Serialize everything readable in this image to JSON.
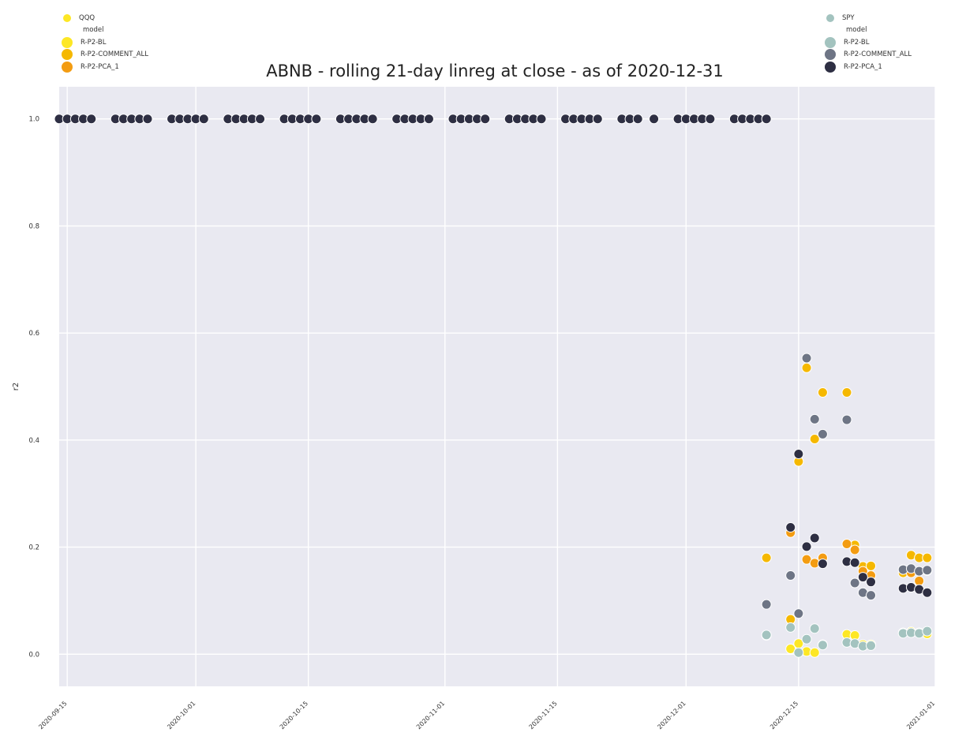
{
  "chart_data": {
    "type": "scatter",
    "title": "ABNB - rolling 21-day linreg at close - as of 2020-12-31",
    "xlabel": "",
    "ylabel": "r2",
    "xlim": [
      "2020-09-14",
      "2021-01-01"
    ],
    "ylim": [
      -0.06,
      1.06
    ],
    "x_ticks": [
      "2020-09-15",
      "2020-10-01",
      "2020-10-15",
      "2020-11-01",
      "2020-11-15",
      "2020-12-01",
      "2020-12-15",
      "2021-01-01"
    ],
    "y_ticks": [
      "0.0",
      "0.2",
      "0.4",
      "0.6",
      "0.8",
      "1.0"
    ],
    "grid": true,
    "legend_left": {
      "hue_title": "QQQ",
      "style_title": "model",
      "entries": [
        "R-P2-BL",
        "R-P2-COMMENT_ALL",
        "R-P2-PCA_1"
      ]
    },
    "legend_right": {
      "hue_title": "SPY",
      "style_title": "model",
      "entries": [
        "R-P2-BL",
        "R-P2-COMMENT_ALL",
        "R-P2-PCA_1"
      ]
    },
    "series": [
      {
        "index": "QQQ",
        "model": "R-P2-BL",
        "color": "#fde725",
        "points": [
          [
            "2020-12-11",
            0.035
          ],
          [
            "2020-12-14",
            0.01
          ],
          [
            "2020-12-15",
            0.02
          ],
          [
            "2020-12-16",
            0.005
          ],
          [
            "2020-12-17",
            0.003
          ],
          [
            "2020-12-18",
            0.018
          ],
          [
            "2020-12-21",
            0.037
          ],
          [
            "2020-12-22",
            0.035
          ],
          [
            "2020-12-23",
            0.018
          ],
          [
            "2020-12-24",
            0.018
          ],
          [
            "2020-12-28",
            0.04
          ],
          [
            "2020-12-29",
            0.042
          ],
          [
            "2020-12-30",
            0.04
          ],
          [
            "2020-12-31",
            0.038
          ]
        ]
      },
      {
        "index": "QQQ",
        "model": "R-P2-COMMENT_ALL",
        "color": "#f5b800",
        "points": [
          [
            "2020-12-11",
            0.18
          ],
          [
            "2020-12-14",
            0.065
          ],
          [
            "2020-12-15",
            0.36
          ],
          [
            "2020-12-16",
            0.535
          ],
          [
            "2020-12-17",
            0.402
          ],
          [
            "2020-12-18",
            0.489
          ],
          [
            "2020-12-21",
            0.489
          ],
          [
            "2020-12-22",
            0.204
          ],
          [
            "2020-12-23",
            0.164
          ],
          [
            "2020-12-24",
            0.165
          ],
          [
            "2020-12-28",
            0.152
          ],
          [
            "2020-12-29",
            0.185
          ],
          [
            "2020-12-30",
            0.18
          ],
          [
            "2020-12-31",
            0.18
          ]
        ]
      },
      {
        "index": "QQQ",
        "model": "R-P2-PCA_1",
        "color": "#f39c12",
        "points": [
          [
            "2020-12-14",
            0.227
          ],
          [
            "2020-12-16",
            0.177
          ],
          [
            "2020-12-17",
            0.17
          ],
          [
            "2020-12-18",
            0.18
          ],
          [
            "2020-12-21",
            0.206
          ],
          [
            "2020-12-22",
            0.195
          ],
          [
            "2020-12-23",
            0.155
          ],
          [
            "2020-12-24",
            0.147
          ],
          [
            "2020-12-28",
            0.158
          ],
          [
            "2020-12-29",
            0.152
          ],
          [
            "2020-12-30",
            0.137
          ],
          [
            "2020-12-31",
            0.156
          ]
        ]
      },
      {
        "index": "SPY",
        "model": "R-P2-BL",
        "color": "#a3c3bf",
        "points": [
          [
            "2020-12-11",
            0.036
          ],
          [
            "2020-12-14",
            0.05
          ],
          [
            "2020-12-15",
            0.003
          ],
          [
            "2020-12-16",
            0.028
          ],
          [
            "2020-12-17",
            0.048
          ],
          [
            "2020-12-18",
            0.017
          ],
          [
            "2020-12-21",
            0.022
          ],
          [
            "2020-12-22",
            0.02
          ],
          [
            "2020-12-23",
            0.015
          ],
          [
            "2020-12-24",
            0.016
          ],
          [
            "2020-12-28",
            0.039
          ],
          [
            "2020-12-29",
            0.04
          ],
          [
            "2020-12-30",
            0.039
          ],
          [
            "2020-12-31",
            0.043
          ]
        ]
      },
      {
        "index": "SPY",
        "model": "R-P2-COMMENT_ALL",
        "color": "#6e7585",
        "points": [
          [
            "2020-12-11",
            0.093
          ],
          [
            "2020-12-14",
            0.147
          ],
          [
            "2020-12-15",
            0.076
          ],
          [
            "2020-12-16",
            0.553
          ],
          [
            "2020-12-17",
            0.439
          ],
          [
            "2020-12-18",
            0.411
          ],
          [
            "2020-12-21",
            0.438
          ],
          [
            "2020-12-22",
            0.133
          ],
          [
            "2020-12-23",
            0.115
          ],
          [
            "2020-12-24",
            0.11
          ],
          [
            "2020-12-28",
            0.158
          ],
          [
            "2020-12-29",
            0.16
          ],
          [
            "2020-12-30",
            0.155
          ],
          [
            "2020-12-31",
            0.157
          ]
        ]
      },
      {
        "index": "SPY",
        "model": "R-P2-PCA_1",
        "color": "#2e2f43",
        "points": [
          [
            "2020-09-14",
            1.0
          ],
          [
            "2020-09-15",
            1.0
          ],
          [
            "2020-09-16",
            1.0
          ],
          [
            "2020-09-17",
            1.0
          ],
          [
            "2020-09-18",
            1.0
          ],
          [
            "2020-09-21",
            1.0
          ],
          [
            "2020-09-22",
            1.0
          ],
          [
            "2020-09-23",
            1.0
          ],
          [
            "2020-09-24",
            1.0
          ],
          [
            "2020-09-25",
            1.0
          ],
          [
            "2020-09-28",
            1.0
          ],
          [
            "2020-09-29",
            1.0
          ],
          [
            "2020-09-30",
            1.0
          ],
          [
            "2020-10-01",
            1.0
          ],
          [
            "2020-10-02",
            1.0
          ],
          [
            "2020-10-05",
            1.0
          ],
          [
            "2020-10-06",
            1.0
          ],
          [
            "2020-10-07",
            1.0
          ],
          [
            "2020-10-08",
            1.0
          ],
          [
            "2020-10-09",
            1.0
          ],
          [
            "2020-10-12",
            1.0
          ],
          [
            "2020-10-13",
            1.0
          ],
          [
            "2020-10-14",
            1.0
          ],
          [
            "2020-10-15",
            1.0
          ],
          [
            "2020-10-16",
            1.0
          ],
          [
            "2020-10-19",
            1.0
          ],
          [
            "2020-10-20",
            1.0
          ],
          [
            "2020-10-21",
            1.0
          ],
          [
            "2020-10-22",
            1.0
          ],
          [
            "2020-10-23",
            1.0
          ],
          [
            "2020-10-26",
            1.0
          ],
          [
            "2020-10-27",
            1.0
          ],
          [
            "2020-10-28",
            1.0
          ],
          [
            "2020-10-29",
            1.0
          ],
          [
            "2020-10-30",
            1.0
          ],
          [
            "2020-11-02",
            1.0
          ],
          [
            "2020-11-03",
            1.0
          ],
          [
            "2020-11-04",
            1.0
          ],
          [
            "2020-11-05",
            1.0
          ],
          [
            "2020-11-06",
            1.0
          ],
          [
            "2020-11-09",
            1.0
          ],
          [
            "2020-11-10",
            1.0
          ],
          [
            "2020-11-11",
            1.0
          ],
          [
            "2020-11-12",
            1.0
          ],
          [
            "2020-11-13",
            1.0
          ],
          [
            "2020-11-16",
            1.0
          ],
          [
            "2020-11-17",
            1.0
          ],
          [
            "2020-11-18",
            1.0
          ],
          [
            "2020-11-19",
            1.0
          ],
          [
            "2020-11-20",
            1.0
          ],
          [
            "2020-11-23",
            1.0
          ],
          [
            "2020-11-24",
            1.0
          ],
          [
            "2020-11-25",
            1.0
          ],
          [
            "2020-11-27",
            1.0
          ],
          [
            "2020-11-30",
            1.0
          ],
          [
            "2020-12-01",
            1.0
          ],
          [
            "2020-12-02",
            1.0
          ],
          [
            "2020-12-03",
            1.0
          ],
          [
            "2020-12-04",
            1.0
          ],
          [
            "2020-12-07",
            1.0
          ],
          [
            "2020-12-08",
            1.0
          ],
          [
            "2020-12-09",
            1.0
          ],
          [
            "2020-12-10",
            1.0
          ],
          [
            "2020-12-11",
            1.0
          ],
          [
            "2020-12-14",
            0.237
          ],
          [
            "2020-12-15",
            0.374
          ],
          [
            "2020-12-16",
            0.201
          ],
          [
            "2020-12-17",
            0.217
          ],
          [
            "2020-12-18",
            0.169
          ],
          [
            "2020-12-21",
            0.173
          ],
          [
            "2020-12-22",
            0.171
          ],
          [
            "2020-12-23",
            0.144
          ],
          [
            "2020-12-24",
            0.135
          ],
          [
            "2020-12-28",
            0.123
          ],
          [
            "2020-12-29",
            0.125
          ],
          [
            "2020-12-30",
            0.121
          ],
          [
            "2020-12-31",
            0.115
          ]
        ]
      }
    ]
  }
}
